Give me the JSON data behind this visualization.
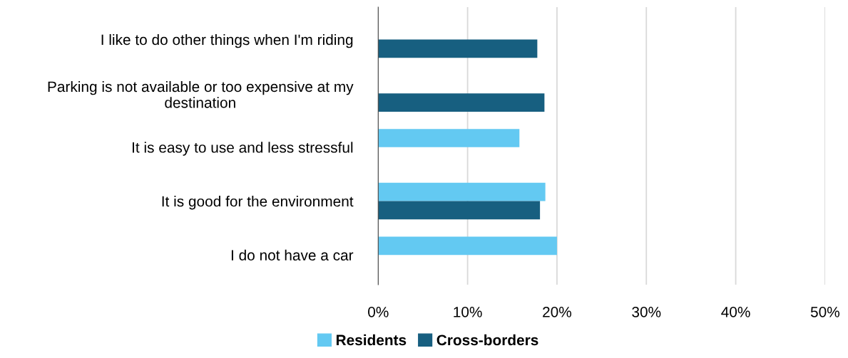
{
  "chart_data": {
    "type": "bar",
    "orientation": "horizontal",
    "categories": [
      "I like to do other things when I'm riding",
      "Parking is not available or too expensive at my destination",
      "It is easy to use and less stressful",
      "It is good for the environment",
      "I do not have a car"
    ],
    "series": [
      {
        "name": "Residents",
        "color": "#63c9f2",
        "values": [
          null,
          null,
          15.8,
          18.7,
          20.0
        ]
      },
      {
        "name": "Cross-borders",
        "color": "#175f80",
        "values": [
          17.8,
          18.6,
          null,
          18.1,
          null
        ]
      }
    ],
    "xlim": [
      0,
      50
    ],
    "xticks": [
      {
        "value": 0,
        "label": "0%"
      },
      {
        "value": 10,
        "label": "10%"
      },
      {
        "value": 20,
        "label": "20%"
      },
      {
        "value": 30,
        "label": "30%"
      },
      {
        "value": 40,
        "label": "40%"
      },
      {
        "value": 50,
        "label": "50%"
      }
    ],
    "grid": "x",
    "legend": "bottom"
  }
}
